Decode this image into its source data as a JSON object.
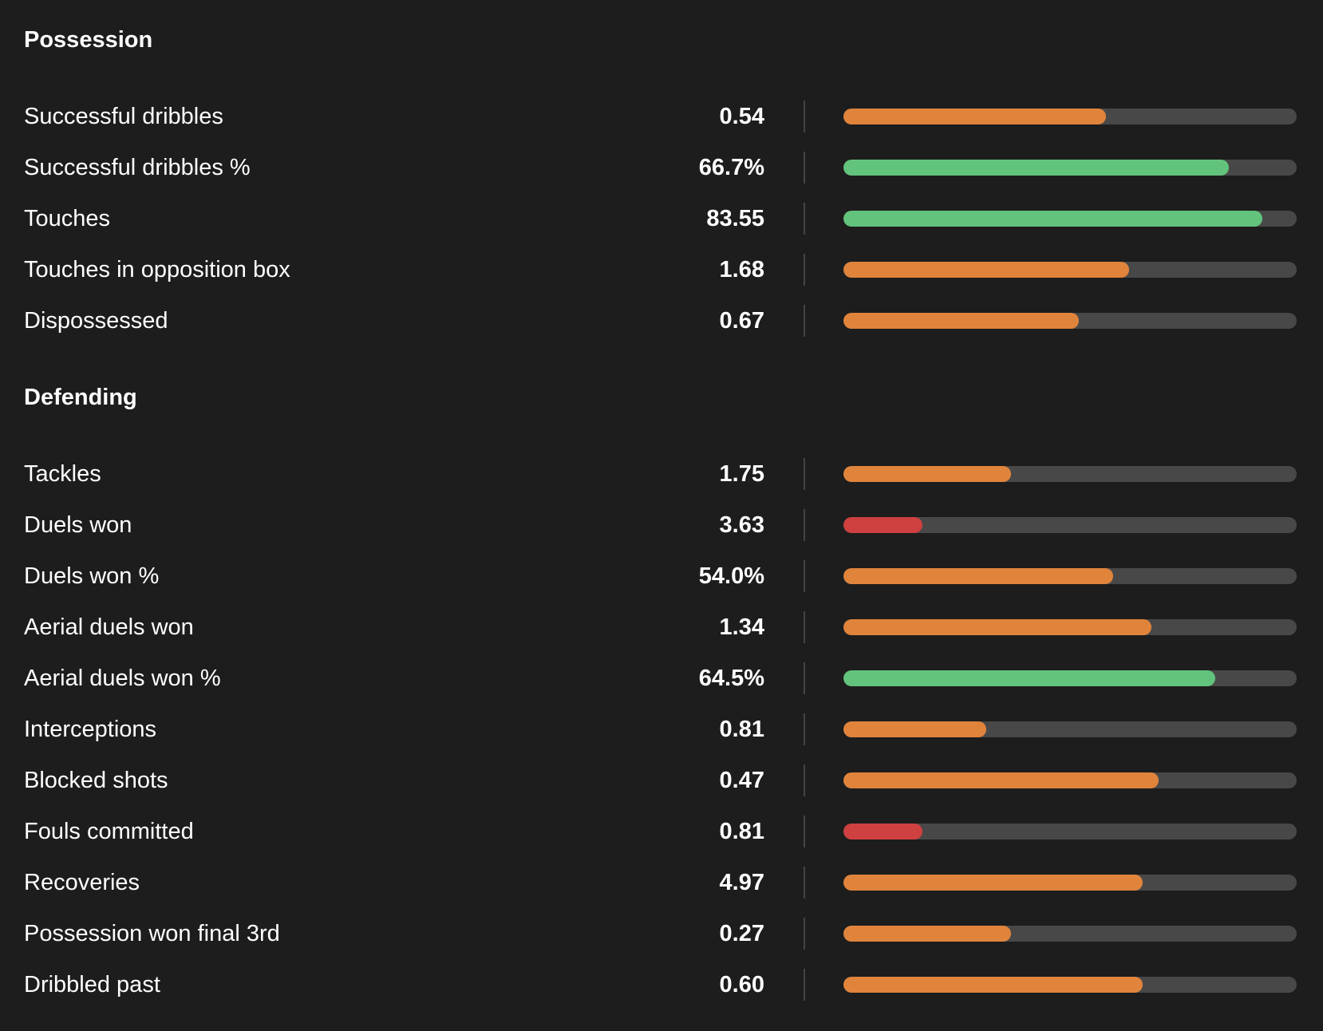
{
  "colors": {
    "good": "#62c37c",
    "average": "#e0843c",
    "poor": "#cf4040",
    "track": "#484848",
    "background": "#1d1d1d"
  },
  "sections": [
    {
      "title": "Possession",
      "rows": [
        {
          "label": "Successful dribbles",
          "value": "0.54",
          "fill": 0.58,
          "rating": "average"
        },
        {
          "label": "Successful dribbles %",
          "value": "66.7%",
          "fill": 0.85,
          "rating": "good"
        },
        {
          "label": "Touches",
          "value": "83.55",
          "fill": 0.925,
          "rating": "good"
        },
        {
          "label": "Touches in opposition box",
          "value": "1.68",
          "fill": 0.63,
          "rating": "average"
        },
        {
          "label": "Dispossessed",
          "value": "0.67",
          "fill": 0.52,
          "rating": "average"
        }
      ]
    },
    {
      "title": "Defending",
      "rows": [
        {
          "label": "Tackles",
          "value": "1.75",
          "fill": 0.37,
          "rating": "average"
        },
        {
          "label": "Duels won",
          "value": "3.63",
          "fill": 0.175,
          "rating": "poor"
        },
        {
          "label": "Duels won %",
          "value": "54.0%",
          "fill": 0.595,
          "rating": "average"
        },
        {
          "label": "Aerial duels won",
          "value": "1.34",
          "fill": 0.68,
          "rating": "average"
        },
        {
          "label": "Aerial duels won %",
          "value": "64.5%",
          "fill": 0.82,
          "rating": "good"
        },
        {
          "label": "Interceptions",
          "value": "0.81",
          "fill": 0.315,
          "rating": "average"
        },
        {
          "label": "Blocked shots",
          "value": "0.47",
          "fill": 0.695,
          "rating": "average"
        },
        {
          "label": "Fouls committed",
          "value": "0.81",
          "fill": 0.175,
          "rating": "poor"
        },
        {
          "label": "Recoveries",
          "value": "4.97",
          "fill": 0.66,
          "rating": "average"
        },
        {
          "label": "Possession won final 3rd",
          "value": "0.27",
          "fill": 0.37,
          "rating": "average"
        },
        {
          "label": "Dribbled past",
          "value": "0.60",
          "fill": 0.66,
          "rating": "average"
        }
      ]
    }
  ]
}
